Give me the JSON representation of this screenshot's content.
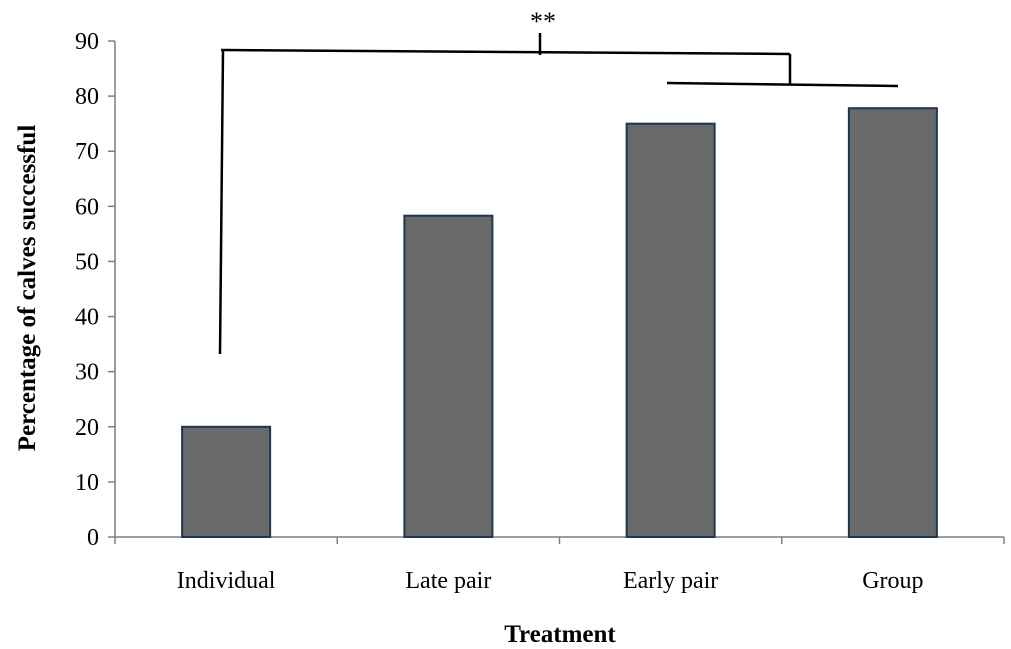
{
  "chart_data": {
    "type": "bar",
    "categories": [
      "Individual",
      "Late pair",
      "Early pair",
      "Group"
    ],
    "values": [
      20,
      58.3,
      75,
      77.8
    ],
    "xlabel": "Treatment",
    "ylabel": "Percentage of calves successful",
    "ylim": [
      0,
      90
    ],
    "yticks": [
      0,
      10,
      20,
      30,
      40,
      50,
      60,
      70,
      80,
      90
    ],
    "grid": false,
    "legend": "none",
    "annotation": "**",
    "bar_color": "#696969",
    "bar_edge_color": "#1f3550"
  }
}
